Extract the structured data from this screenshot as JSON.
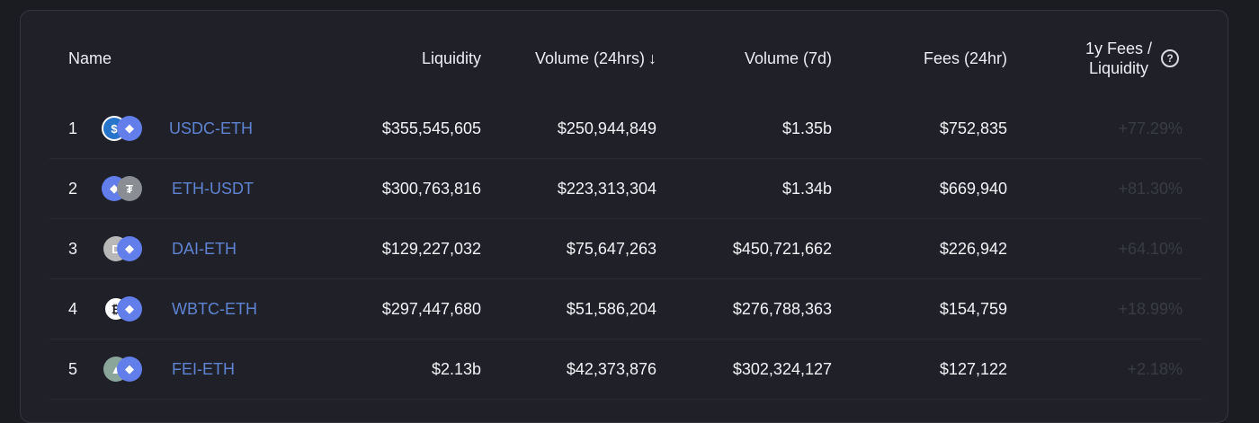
{
  "header": {
    "name": "Name",
    "liquidity": "Liquidity",
    "volume_24h": "Volume (24hrs)",
    "sort_arrow": "↓",
    "volume_7d": "Volume (7d)",
    "fees_24h": "Fees (24hr)",
    "fees_liquidity_line1": "1y Fees /",
    "fees_liquidity_line2": "Liquidity",
    "help": "?"
  },
  "rows": [
    {
      "rank": "1",
      "pair": "USDC-ETH",
      "liquidity": "$355,545,605",
      "volume_24h": "$250,944,849",
      "volume_7d": "$1.35b",
      "fees_24h": "$752,835",
      "fees_ratio": "+77.29%",
      "icons": [
        "usdc-icon",
        "eth-icon"
      ],
      "colors": [
        "#2775ca",
        "#627eea"
      ],
      "glyphs": [
        "$",
        "◆"
      ]
    },
    {
      "rank": "2",
      "pair": "ETH-USDT",
      "liquidity": "$300,763,816",
      "volume_24h": "$223,313,304",
      "volume_7d": "$1.34b",
      "fees_24h": "$669,940",
      "fees_ratio": "+81.30%",
      "icons": [
        "eth-icon",
        "usdt-icon"
      ],
      "colors": [
        "#627eea",
        "#8a8d93"
      ],
      "glyphs": [
        "◆",
        "₮"
      ]
    },
    {
      "rank": "3",
      "pair": "DAI-ETH",
      "liquidity": "$129,227,032",
      "volume_24h": "$75,647,263",
      "volume_7d": "$450,721,662",
      "fees_24h": "$226,942",
      "fees_ratio": "+64.10%",
      "icons": [
        "dai-icon",
        "eth-icon"
      ],
      "colors": [
        "#b8b8b8",
        "#627eea"
      ],
      "glyphs": [
        "D",
        "◆"
      ]
    },
    {
      "rank": "4",
      "pair": "WBTC-ETH",
      "liquidity": "$297,447,680",
      "volume_24h": "$51,586,204",
      "volume_7d": "$276,788,363",
      "fees_24h": "$154,759",
      "fees_ratio": "+18.99%",
      "icons": [
        "wbtc-icon",
        "eth-icon"
      ],
      "colors": [
        "#ffffff",
        "#627eea"
      ],
      "glyphs": [
        "₿",
        "◆"
      ]
    },
    {
      "rank": "5",
      "pair": "FEI-ETH",
      "liquidity": "$2.13b",
      "volume_24h": "$42,373,876",
      "volume_7d": "$302,324,127",
      "fees_24h": "$127,122",
      "fees_ratio": "+2.18%",
      "icons": [
        "fei-icon",
        "eth-icon"
      ],
      "colors": [
        "#8aa69a",
        "#627eea"
      ],
      "glyphs": [
        "▲",
        "◆"
      ]
    }
  ]
}
